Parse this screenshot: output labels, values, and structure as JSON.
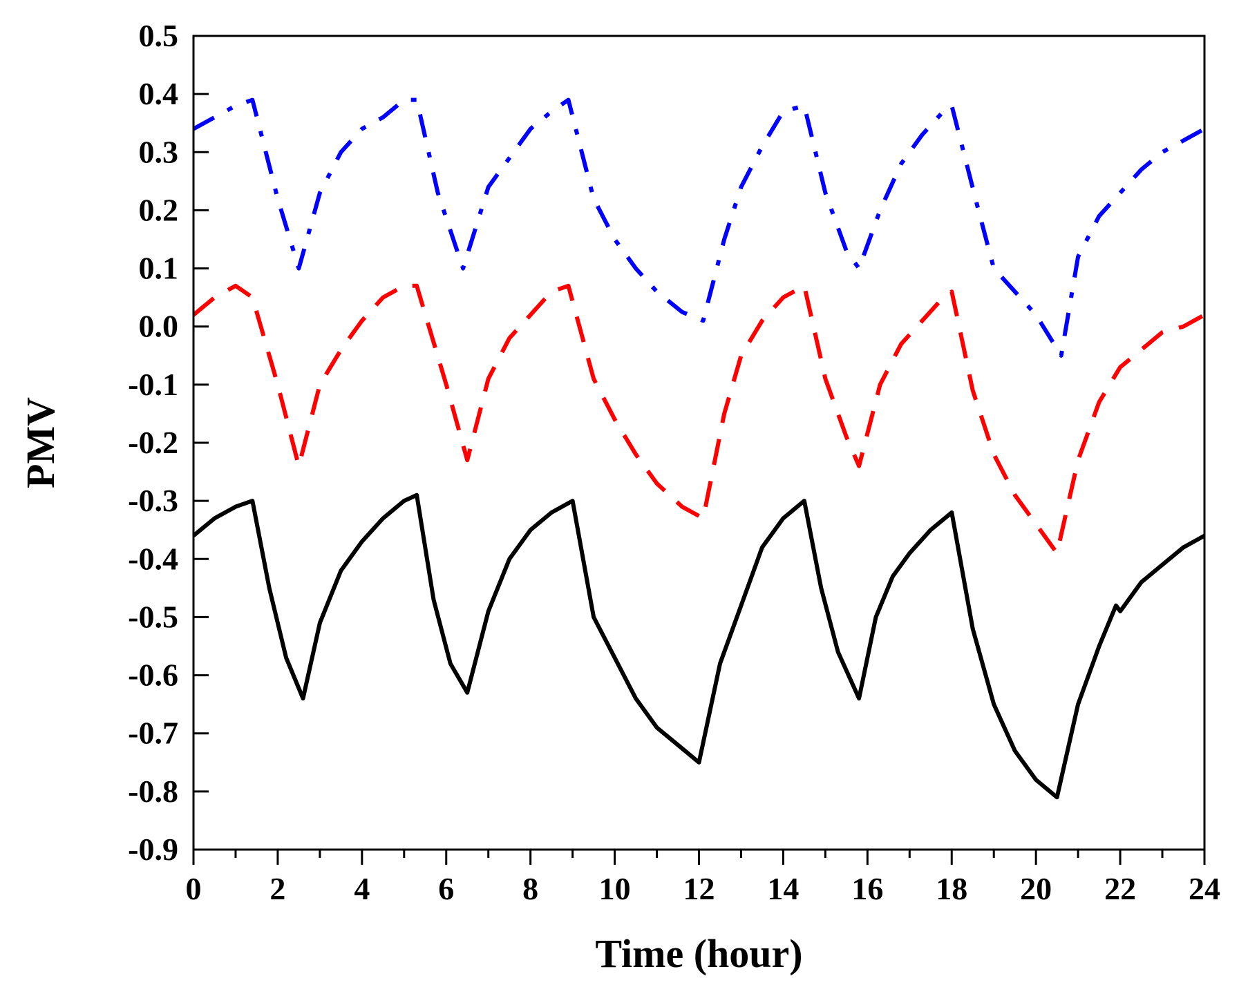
{
  "chart_data": {
    "type": "line",
    "title": "",
    "xlabel": "Time (hour)",
    "ylabel": "PMV",
    "xlim": [
      0,
      24
    ],
    "ylim": [
      -0.9,
      0.5
    ],
    "x_major_ticks": [
      0,
      2,
      4,
      6,
      8,
      10,
      12,
      14,
      16,
      18,
      20,
      22,
      24
    ],
    "x_minor_step": 1,
    "y_major_ticks": [
      0.5,
      0.4,
      0.3,
      0.2,
      0.1,
      0.0,
      -0.1,
      -0.2,
      -0.3,
      -0.4,
      -0.5,
      -0.6,
      -0.7,
      -0.8,
      -0.9
    ],
    "x_tick_labels": [
      "0",
      "2",
      "4",
      "6",
      "8",
      "10",
      "12",
      "14",
      "16",
      "18",
      "20",
      "22",
      "24"
    ],
    "y_tick_labels": [
      "0.5",
      "0.4",
      "0.3",
      "0.2",
      "0.1",
      "0.0",
      "-0.1",
      "-0.2",
      "-0.3",
      "-0.4",
      "-0.5",
      "-0.6",
      "-0.7",
      "-0.8",
      "-0.9"
    ],
    "grid": false,
    "legend": "none",
    "series": [
      {
        "name": "dash-dot",
        "color": "#0000ff",
        "style": "dashdot",
        "x": [
          0,
          0.5,
          1,
          1.4,
          2.0,
          2.5,
          3.0,
          3.5,
          4.0,
          4.5,
          5.0,
          5.3,
          5.8,
          6.4,
          7.0,
          7.5,
          8.0,
          8.5,
          8.9,
          9.5,
          10.0,
          10.5,
          11.0,
          11.6,
          12.1,
          12.6,
          13.0,
          13.5,
          14.0,
          14.5,
          15.0,
          15.5,
          15.8,
          16.3,
          16.8,
          17.3,
          17.8,
          18.0,
          18.6,
          19.0,
          19.5,
          20.0,
          20.6,
          21.0,
          21.5,
          22.0,
          22.5,
          23.0,
          23.5,
          24.0
        ],
        "values": [
          0.34,
          0.36,
          0.38,
          0.39,
          0.22,
          0.1,
          0.23,
          0.3,
          0.34,
          0.36,
          0.39,
          0.39,
          0.23,
          0.1,
          0.24,
          0.29,
          0.34,
          0.37,
          0.39,
          0.22,
          0.15,
          0.1,
          0.06,
          0.025,
          0.01,
          0.15,
          0.24,
          0.31,
          0.37,
          0.38,
          0.23,
          0.13,
          0.1,
          0.2,
          0.28,
          0.33,
          0.37,
          0.38,
          0.21,
          0.1,
          0.06,
          0.02,
          -0.05,
          0.12,
          0.19,
          0.23,
          0.27,
          0.3,
          0.32,
          0.34
        ]
      },
      {
        "name": "dashed",
        "color": "#ff0000",
        "style": "dashed",
        "x": [
          0,
          0.5,
          1.0,
          1.4,
          2.0,
          2.5,
          3.0,
          3.5,
          4.0,
          4.5,
          5.0,
          5.3,
          6.0,
          6.5,
          7.0,
          7.5,
          8.0,
          8.5,
          8.9,
          9.5,
          10.0,
          10.5,
          11.0,
          11.6,
          12.1,
          12.6,
          13.0,
          13.5,
          14.0,
          14.5,
          15.0,
          15.5,
          15.8,
          16.3,
          16.8,
          17.3,
          17.8,
          18.0,
          18.5,
          19.0,
          19.5,
          20.0,
          20.5,
          21.0,
          21.5,
          22.0,
          22.5,
          23.0,
          23.5,
          24.0
        ],
        "values": [
          0.02,
          0.05,
          0.07,
          0.05,
          -0.1,
          -0.24,
          -0.1,
          -0.04,
          0.01,
          0.05,
          0.07,
          0.07,
          -0.1,
          -0.23,
          -0.09,
          -0.02,
          0.02,
          0.06,
          0.07,
          -0.09,
          -0.16,
          -0.22,
          -0.27,
          -0.31,
          -0.33,
          -0.15,
          -0.05,
          0.01,
          0.05,
          0.07,
          -0.09,
          -0.19,
          -0.24,
          -0.1,
          -0.03,
          0.01,
          0.05,
          0.06,
          -0.11,
          -0.22,
          -0.29,
          -0.34,
          -0.39,
          -0.23,
          -0.13,
          -0.07,
          -0.04,
          -0.01,
          0.0,
          0.02
        ]
      },
      {
        "name": "solid",
        "color": "#000000",
        "style": "solid",
        "x": [
          0,
          0.5,
          1.0,
          1.4,
          1.8,
          2.2,
          2.6,
          3.0,
          3.5,
          4.0,
          4.5,
          5.0,
          5.3,
          5.7,
          6.1,
          6.5,
          7.0,
          7.5,
          8.0,
          8.5,
          9.0,
          9.5,
          10.0,
          10.5,
          11.0,
          11.5,
          12.0,
          12.5,
          13.0,
          13.5,
          14.0,
          14.5,
          14.9,
          15.3,
          15.8,
          16.2,
          16.6,
          17.0,
          17.5,
          18.0,
          18.5,
          19.0,
          19.5,
          20.0,
          20.5,
          21.0,
          21.5,
          21.9,
          22.0,
          22.5,
          23.0,
          23.5,
          24.0
        ],
        "values": [
          -0.36,
          -0.33,
          -0.31,
          -0.3,
          -0.45,
          -0.57,
          -0.64,
          -0.51,
          -0.42,
          -0.37,
          -0.33,
          -0.3,
          -0.29,
          -0.47,
          -0.58,
          -0.63,
          -0.49,
          -0.4,
          -0.35,
          -0.32,
          -0.3,
          -0.5,
          -0.57,
          -0.64,
          -0.69,
          -0.72,
          -0.75,
          -0.58,
          -0.48,
          -0.38,
          -0.33,
          -0.3,
          -0.45,
          -0.56,
          -0.64,
          -0.5,
          -0.43,
          -0.39,
          -0.35,
          -0.32,
          -0.52,
          -0.65,
          -0.73,
          -0.78,
          -0.81,
          -0.65,
          -0.55,
          -0.48,
          -0.49,
          -0.44,
          -0.41,
          -0.38,
          -0.36
        ]
      }
    ]
  }
}
